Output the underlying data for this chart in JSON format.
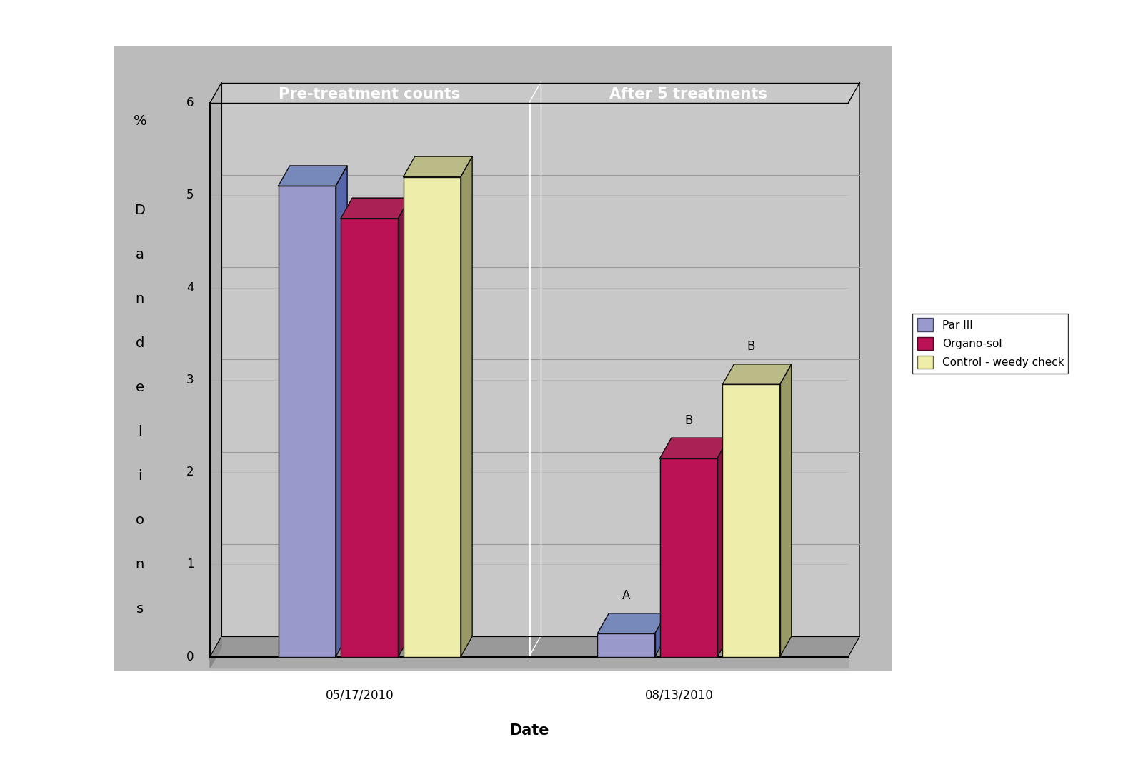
{
  "categories": [
    "05/17/2010",
    "08/13/2010"
  ],
  "series": {
    "Par III": [
      5.1,
      0.25
    ],
    "Organo-sol": [
      4.75,
      2.15
    ],
    "Control - weedy check": [
      5.2,
      2.95
    ]
  },
  "bar_colors": {
    "Par III": "#9999cc",
    "Organo-sol": "#bb1155",
    "Control - weedy check": "#eeeeaa"
  },
  "bar_side_colors": {
    "Par III": "#5566aa",
    "Organo-sol": "#881144",
    "Control - weedy check": "#999966"
  },
  "bar_top_colors": {
    "Par III": "#7788bb",
    "Organo-sol": "#aa2255",
    "Control - weedy check": "#bbbb88"
  },
  "bar_edge_color": "#111111",
  "ylim": [
    0,
    6
  ],
  "yticks": [
    0,
    1,
    2,
    3,
    4,
    5,
    6
  ],
  "xlabel": "Date",
  "bg_color": "#bbbbbb",
  "wall_color": "#c8c8c8",
  "floor_color": "#aaaaaa",
  "floor_side_color": "#888888",
  "gridline_color": "#aaaaaa",
  "annotations_pos1": {
    "Par III": "A",
    "Organo-sol": "B",
    "Control - weedy check": "B"
  },
  "section_label_left": "Pre-treatment counts",
  "section_label_right": "After 5 treatments",
  "legend_labels": [
    "Par III",
    "Organo-sol",
    "Control - weedy check"
  ],
  "axis_label_fontsize": 14,
  "tick_fontsize": 12,
  "section_fontsize": 15,
  "annot_fontsize": 12
}
